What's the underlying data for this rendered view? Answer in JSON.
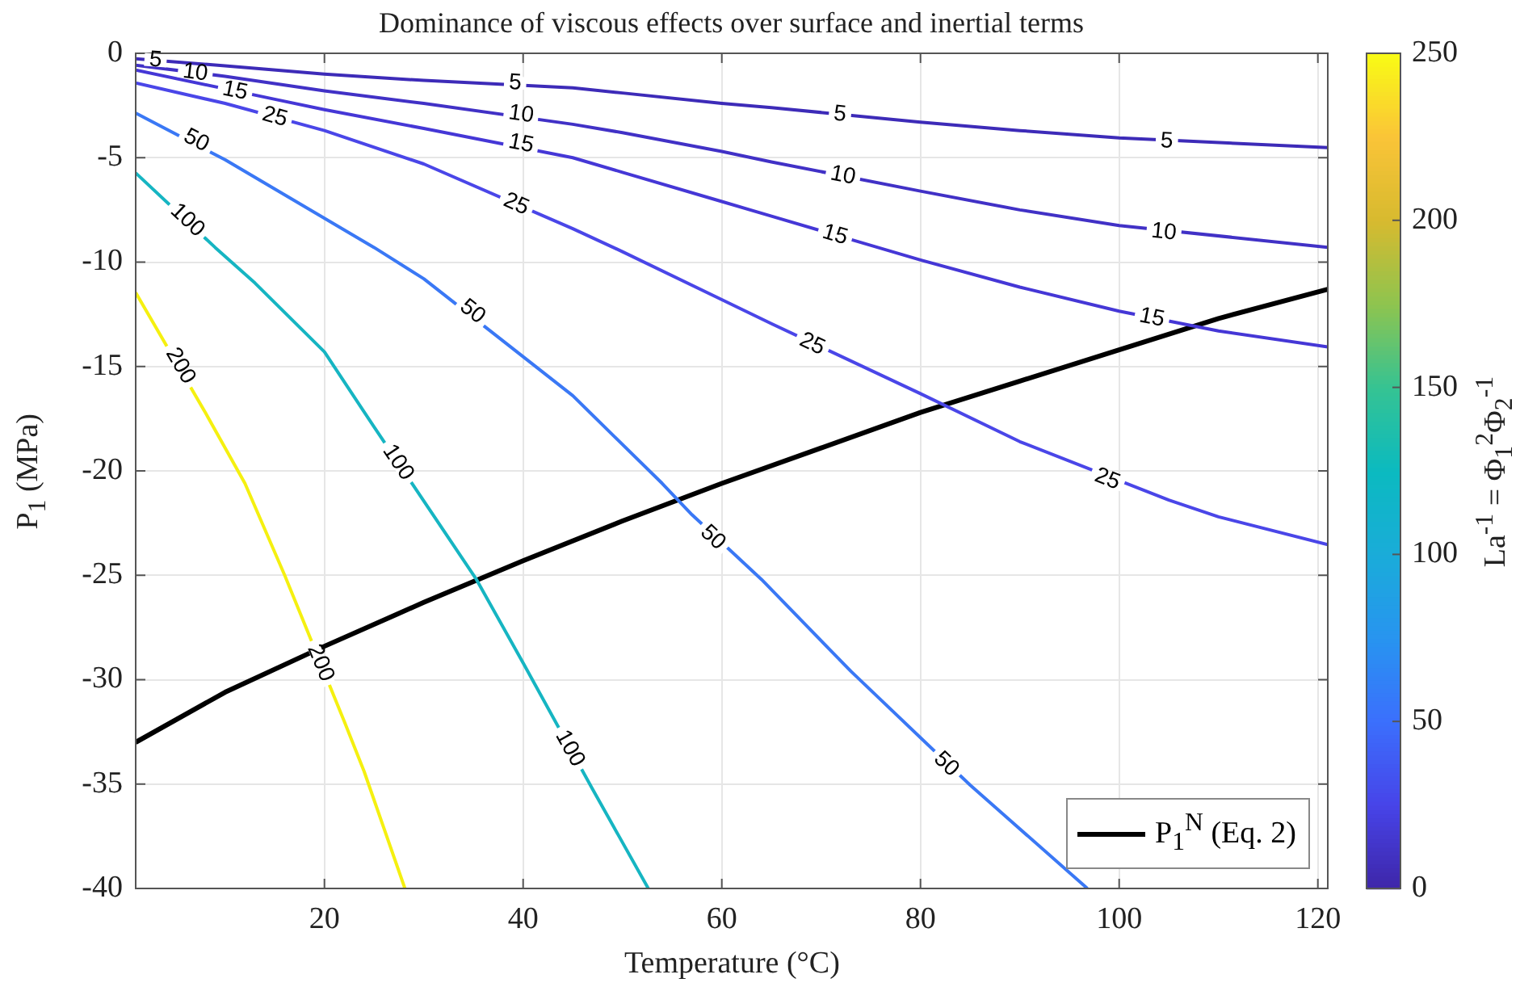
{
  "chart_data": {
    "type": "line",
    "title": "Dominance of viscous effects over surface and inertial terms",
    "xlabel": "Temperature (°C)",
    "ylabel": "P$_{1}$ (MPa)",
    "clabel": "La$^{-1}$ = Φ$_{1}$$^{2}$Φ$_{2}$$^{-1}$",
    "xlim": [
      1,
      121
    ],
    "xticks": [
      20,
      40,
      60,
      80,
      100,
      120
    ],
    "ylim": [
      -40,
      0
    ],
    "yticks": [
      -40,
      -35,
      -30,
      -25,
      -20,
      -15,
      -10,
      -5,
      0
    ],
    "clim": [
      0,
      250
    ],
    "cticks": [
      0,
      50,
      100,
      150,
      200,
      250
    ],
    "grid": true,
    "legend": "bottom right",
    "line_style": "solid",
    "marker": "none",
    "series": [
      {
        "color": "#3d2bb8",
        "x": [
          1,
          10,
          20,
          30,
          45,
          50,
          60,
          65,
          80,
          90,
          100,
          121
        ],
        "values": [
          -0.26,
          -0.6,
          -1.0,
          -1.3,
          -1.65,
          -1.9,
          -2.4,
          -2.6,
          -3.3,
          -3.7,
          -4.05,
          -4.52
        ]
      },
      {
        "color": "#4131c6",
        "x": [
          1,
          10,
          20,
          30,
          45,
          50,
          60,
          65,
          80,
          90,
          100,
          121
        ],
        "values": [
          -0.57,
          -1.1,
          -1.8,
          -2.4,
          -3.4,
          -3.8,
          -4.7,
          -5.2,
          -6.6,
          -7.5,
          -8.25,
          -9.29
        ]
      },
      {
        "color": "#4537d6",
        "x": [
          1,
          15,
          20,
          30,
          45,
          50,
          60,
          65,
          80,
          90,
          100,
          110,
          121
        ],
        "values": [
          -0.8,
          -2.2,
          -2.7,
          -3.6,
          -5.0,
          -5.7,
          -7.1,
          -7.8,
          -9.9,
          -11.2,
          -12.35,
          -13.3,
          -14.06
        ]
      },
      {
        "color": "#4a46e8",
        "x": [
          1,
          10,
          20,
          30,
          45,
          50,
          60,
          65,
          80,
          90,
          105,
          110,
          121
        ],
        "values": [
          -1.42,
          -2.4,
          -3.7,
          -5.3,
          -8.4,
          -9.5,
          -11.8,
          -12.95,
          -16.3,
          -18.6,
          -21.4,
          -22.2,
          -23.53
        ]
      },
      {
        "color": "#3a78f5",
        "x": [
          1,
          10,
          15,
          25,
          30,
          45,
          54,
          57,
          64,
          73,
          85,
          96.8
        ],
        "values": [
          -2.86,
          -5.1,
          -6.5,
          -9.3,
          -10.8,
          -16.4,
          -20.6,
          -22.1,
          -25.2,
          -29.6,
          -35.05,
          -40
        ]
      },
      {
        "color": "#16b5c2",
        "x": [
          1,
          9,
          13,
          20,
          25,
          35.3,
          40,
          47,
          52.6
        ],
        "values": [
          -5.73,
          -9.3,
          -11,
          -14.3,
          -17.9,
          -25.2,
          -29.2,
          -35.25,
          -40
        ]
      },
      {
        "color": "#f5f010",
        "x": [
          1,
          8,
          12,
          16,
          22,
          24,
          28.1
        ],
        "values": [
          -11.46,
          -17.2,
          -20.6,
          -25,
          -32.0,
          -34.4,
          -40
        ]
      },
      {
        "name": "P$_{1}$$^{N}$ (Eq. 2)",
        "color": "#000000",
        "x": [
          1,
          10,
          20,
          30,
          40,
          50,
          60,
          70,
          80,
          90,
          100,
          110,
          121
        ],
        "values": [
          -33.0,
          -30.6,
          -28.4,
          -26.3,
          -24.3,
          -22.4,
          -20.6,
          -18.9,
          -17.2,
          -15.7,
          -14.2,
          -12.7,
          -11.3
        ]
      }
    ],
    "annotations": [
      {
        "text": "5",
        "x": 3,
        "y": -0.33
      },
      {
        "text": "10",
        "x": 7,
        "y": -0.93
      },
      {
        "text": "15",
        "x": 11,
        "y": -1.8
      },
      {
        "text": "25",
        "x": 15,
        "y": -3.05
      },
      {
        "text": "50",
        "x": 7.1,
        "y": -4.18
      },
      {
        "text": "100",
        "x": 6.2,
        "y": -8.0
      },
      {
        "text": "200",
        "x": 5.5,
        "y": -14.97
      },
      {
        "text": "5",
        "x": 39.2,
        "y": -1.42
      },
      {
        "text": "10",
        "x": 39.8,
        "y": -2.92
      },
      {
        "text": "15",
        "x": 39.8,
        "y": -4.33
      },
      {
        "text": "25",
        "x": 39.3,
        "y": -7.23
      },
      {
        "text": "50",
        "x": 34.9,
        "y": -12.38
      },
      {
        "text": "100",
        "x": 27.4,
        "y": -19.6
      },
      {
        "text": "200",
        "x": 19.6,
        "y": -29.2
      },
      {
        "text": "5",
        "x": 71.9,
        "y": -2.92
      },
      {
        "text": "10",
        "x": 72.2,
        "y": -5.86
      },
      {
        "text": "15",
        "x": 71.4,
        "y": -8.7
      },
      {
        "text": "25",
        "x": 69.1,
        "y": -13.93
      },
      {
        "text": "50",
        "x": 59.1,
        "y": -23.2
      },
      {
        "text": "100",
        "x": 44.7,
        "y": -33.3
      },
      {
        "text": "5",
        "x": 104.8,
        "y": -4.21
      },
      {
        "text": "10",
        "x": 104.5,
        "y": -8.57
      },
      {
        "text": "15",
        "x": 103.3,
        "y": -12.67
      },
      {
        "text": "25",
        "x": 98.8,
        "y": -20.4
      },
      {
        "text": "50",
        "x": 82.6,
        "y": -34.05
      }
    ]
  }
}
